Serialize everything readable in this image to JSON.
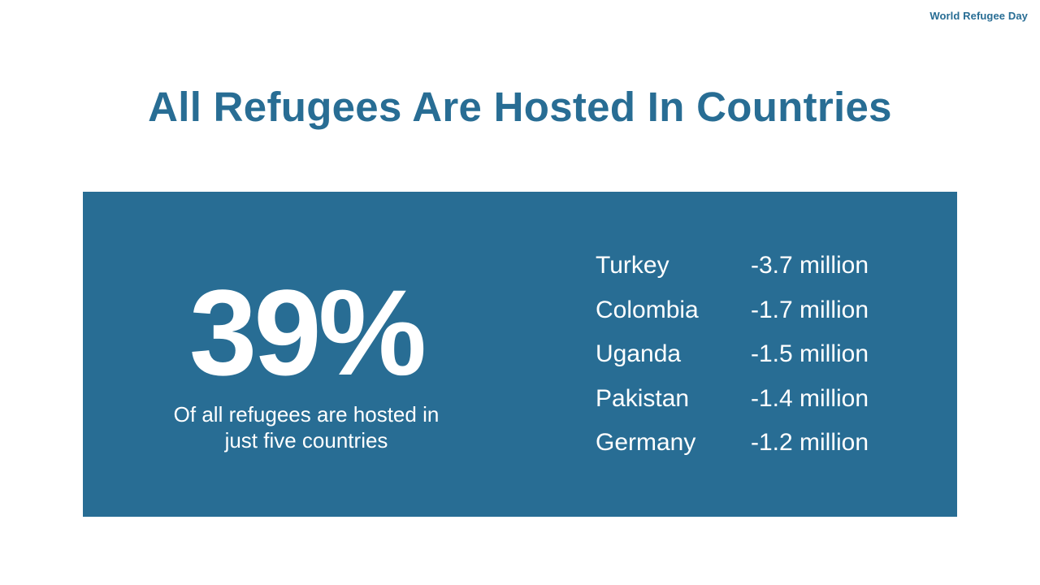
{
  "brand": "World Refugee Day",
  "title": "All Refugees Are Hosted In Countries",
  "stat": {
    "value": "39%",
    "caption_line1": "Of all refugees are hosted in",
    "caption_line2": "just five countries"
  },
  "countries": [
    {
      "name": "Turkey",
      "value": "-3.7 million"
    },
    {
      "name": "Colombia",
      "value": "-1.7 million"
    },
    {
      "name": "Uganda",
      "value": "-1.5 million"
    },
    {
      "name": "Pakistan",
      "value": "-1.4 million"
    },
    {
      "name": "Germany",
      "value": "-1.2 million"
    }
  ],
  "colors": {
    "accent": "#286d94",
    "background": "#ffffff",
    "panel_text": "#ffffff"
  }
}
